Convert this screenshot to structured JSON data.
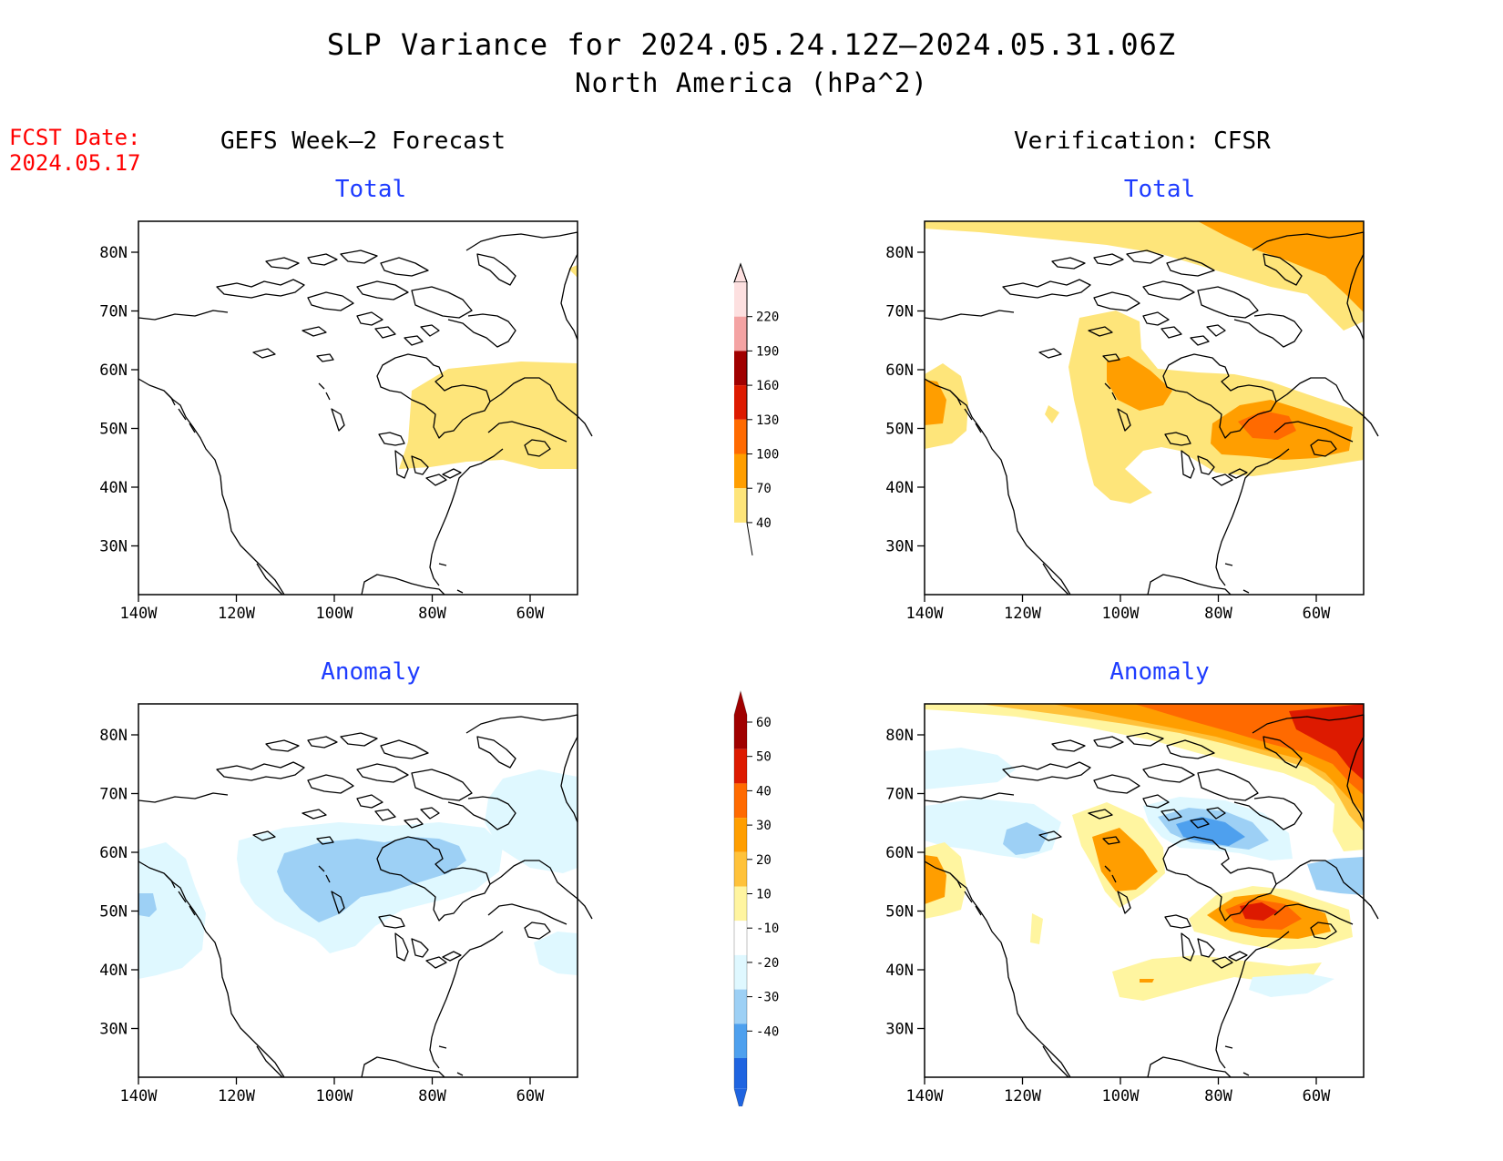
{
  "header": {
    "title": "SLP Variance for 2024.05.24.12Z–2024.05.31.06Z",
    "subtitle": "North America (hPa^2)",
    "fcst_label_line1": "FCST Date:",
    "fcst_label_line2": "2024.05.17"
  },
  "columns": {
    "left": "GEFS Week–2 Forecast",
    "right": "Verification: CFSR"
  },
  "panels": {
    "gefs_total": {
      "title": "Total"
    },
    "cfsr_total": {
      "title": "Total"
    },
    "gefs_anomaly": {
      "title": "Anomaly"
    },
    "cfsr_anomaly": {
      "title": "Anomaly"
    }
  },
  "axes": {
    "lat_labels": [
      "80N",
      "70N",
      "60N",
      "50N",
      "40N",
      "30N"
    ],
    "lon_labels": [
      "140W",
      "120W",
      "100W",
      "80W",
      "60W"
    ]
  },
  "colorbar_total": {
    "levels": [
      "220",
      "190",
      "160",
      "130",
      "100",
      "70",
      "40"
    ],
    "colors": [
      "#fde0e0",
      "#f4a3a3",
      "#a00000",
      "#dd1a00",
      "#ff6a00",
      "#ff9e00",
      "#fee57a"
    ]
  },
  "colorbar_anomaly": {
    "levels": [
      "60",
      "50",
      "40",
      "30",
      "20",
      "10",
      "-10",
      "-20",
      "-30",
      "-40"
    ],
    "colors": [
      "#a00000",
      "#dd1a00",
      "#ff6a00",
      "#ff9e00",
      "#ffc23a",
      "#fff5a0",
      "#ffffff",
      "#dff8ff",
      "#9dd0f5",
      "#4ea0ee",
      "#1f64e0"
    ]
  }
}
